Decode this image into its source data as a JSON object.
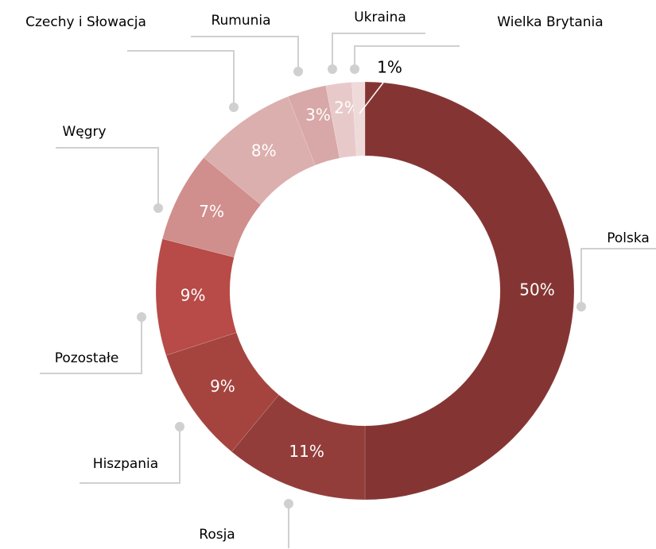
{
  "chart_data": {
    "type": "donut",
    "categories": [
      "Polska",
      "Rosja",
      "Hiszpania",
      "Pozostałe",
      "Węgry",
      "Czechy i Słowacja",
      "Rumunia",
      "Ukraina",
      "Wielka Brytania"
    ],
    "values": [
      50,
      11,
      9,
      9,
      7,
      8,
      3,
      2,
      1
    ],
    "value_labels": [
      "50%",
      "11%",
      "9%",
      "9%",
      "7%",
      "8%",
      "3%",
      "2%",
      "1%"
    ],
    "colors": [
      "#843533",
      "#933d3a",
      "#a5443f",
      "#b84a47",
      "#d08f8c",
      "#dbafae",
      "#d7a8a7",
      "#e8c9c9",
      "#efdada"
    ]
  }
}
